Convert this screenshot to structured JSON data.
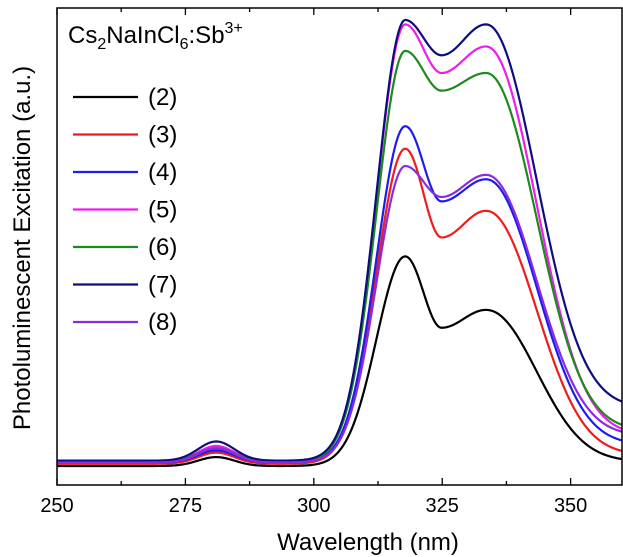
{
  "chart_data": {
    "type": "line",
    "title": "",
    "annotation": {
      "main": "Cs",
      "sub1": "2",
      "mid": "NaInCl",
      "sub2": "6",
      "tail": ":Sb",
      "sup": "3+"
    },
    "xlabel": "Wavelength (nm)",
    "ylabel": "Photoluminescent Excitation (a.u.)",
    "xlim": [
      250,
      360
    ],
    "ylim": [
      0,
      1.0
    ],
    "xticks": [
      "250",
      "275",
      "300",
      "325",
      "350"
    ],
    "xtick_values": [
      250,
      275,
      300,
      325,
      350
    ],
    "yticks": [],
    "legend_position": "top-left",
    "grid": false,
    "series": [
      {
        "name": "(2)",
        "color": "#000000",
        "base": 0.0,
        "bump": 0.02,
        "peak1": 0.47,
        "valley": 0.31,
        "peak2": 0.35,
        "tail": 0.01
      },
      {
        "name": "(3)",
        "color": "#ee1c1c",
        "base": 0.005,
        "bump": 0.03,
        "peak1": 0.71,
        "valley": 0.51,
        "peak2": 0.57,
        "tail": 0.02
      },
      {
        "name": "(4)",
        "color": "#1c1cee",
        "base": 0.008,
        "bump": 0.035,
        "peak1": 0.76,
        "valley": 0.59,
        "peak2": 0.64,
        "tail": 0.04
      },
      {
        "name": "(5)",
        "color": "#ee1cee",
        "base": 0.01,
        "bump": 0.045,
        "peak1": 0.99,
        "valley": 0.88,
        "peak2": 0.94,
        "tail": 0.06
      },
      {
        "name": "(6)",
        "color": "#1c8a1c",
        "base": 0.01,
        "bump": 0.04,
        "peak1": 0.93,
        "valley": 0.84,
        "peak2": 0.88,
        "tail": 0.07
      },
      {
        "name": "(7)",
        "color": "#0d0d80",
        "base": 0.012,
        "bump": 0.055,
        "peak1": 1.0,
        "valley": 0.92,
        "peak2": 0.99,
        "tail": 0.12
      },
      {
        "name": "(8)",
        "color": "#8a2be2",
        "base": 0.008,
        "bump": 0.04,
        "peak1": 0.67,
        "valley": 0.6,
        "peak2": 0.65,
        "tail": 0.06
      }
    ]
  }
}
